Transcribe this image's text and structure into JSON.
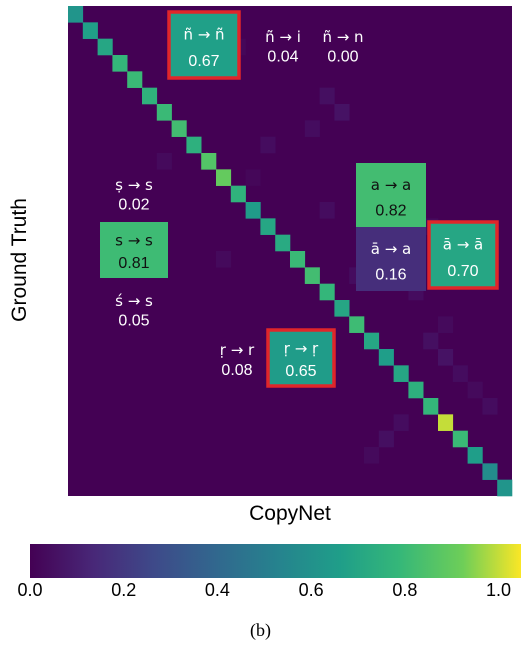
{
  "chart_data": {
    "type": "heatmap",
    "title": "",
    "xlabel": "CopyNet",
    "ylabel": "Ground Truth",
    "caption": "(b)",
    "size": 30,
    "colorscale": "viridis",
    "colorbar": {
      "range": [
        0.0,
        1.05
      ],
      "ticks": [
        "0.0",
        "0.2",
        "0.4",
        "0.6",
        "0.8",
        "1.0"
      ],
      "tick_values": [
        0.0,
        0.2,
        0.4,
        0.6,
        0.8,
        1.0
      ]
    },
    "diagonal": [
      0.62,
      0.67,
      0.7,
      0.78,
      0.8,
      0.76,
      0.8,
      0.82,
      0.75,
      0.86,
      0.9,
      0.76,
      0.65,
      0.7,
      0.72,
      0.8,
      0.82,
      0.78,
      0.7,
      0.81,
      0.7,
      0.66,
      0.7,
      0.75,
      0.78,
      1.0,
      0.8,
      0.66,
      0.58,
      0.62
    ],
    "off_diagonal": [
      {
        "row": 2,
        "col": 7,
        "value": 0.04
      },
      {
        "row": 2,
        "col": 11,
        "value": 0.02
      },
      {
        "row": 5,
        "col": 17,
        "value": 0.05
      },
      {
        "row": 6,
        "col": 18,
        "value": 0.06
      },
      {
        "row": 7,
        "col": 16,
        "value": 0.04
      },
      {
        "row": 8,
        "col": 13,
        "value": 0.04
      },
      {
        "row": 9,
        "col": 6,
        "value": 0.03
      },
      {
        "row": 10,
        "col": 12,
        "value": 0.02
      },
      {
        "row": 11,
        "col": 20,
        "value": 0.03
      },
      {
        "row": 12,
        "col": 17,
        "value": 0.04
      },
      {
        "row": 13,
        "col": 24,
        "value": 0.03
      },
      {
        "row": 14,
        "col": 22,
        "value": 0.04
      },
      {
        "row": 15,
        "col": 10,
        "value": 0.03
      },
      {
        "row": 16,
        "col": 19,
        "value": 0.04
      },
      {
        "row": 17,
        "col": 23,
        "value": 0.04
      },
      {
        "row": 19,
        "col": 25,
        "value": 0.03
      },
      {
        "row": 20,
        "col": 24,
        "value": 0.05
      },
      {
        "row": 21,
        "col": 25,
        "value": 0.06
      },
      {
        "row": 22,
        "col": 26,
        "value": 0.04
      },
      {
        "row": 23,
        "col": 27,
        "value": 0.03
      },
      {
        "row": 24,
        "col": 28,
        "value": 0.04
      },
      {
        "row": 25,
        "col": 22,
        "value": 0.04
      },
      {
        "row": 26,
        "col": 21,
        "value": 0.05
      },
      {
        "row": 27,
        "col": 20,
        "value": 0.03
      }
    ],
    "annotations": [
      {
        "id": "nn",
        "label": "ñ → ñ",
        "value": "0.67",
        "cell": 0.67,
        "highlight": true,
        "boxed": true
      },
      {
        "id": "ni",
        "label": "ñ → i",
        "value": "0.04",
        "cell": null,
        "highlight": false,
        "boxed": false
      },
      {
        "id": "nn2",
        "label": "ñ → n",
        "value": "0.00",
        "cell": null,
        "highlight": false,
        "boxed": false
      },
      {
        "id": "s_dot",
        "label": "ṣ → s",
        "value": "0.02",
        "cell": null,
        "highlight": false,
        "boxed": false
      },
      {
        "id": "ss",
        "label": "s → s",
        "value": "0.81",
        "cell": 0.81,
        "highlight": false,
        "boxed": true
      },
      {
        "id": "s_ac",
        "label": "ś → s",
        "value": "0.05",
        "cell": null,
        "highlight": false,
        "boxed": false
      },
      {
        "id": "aa",
        "label": "a → a",
        "value": "0.82",
        "cell": 0.82,
        "highlight": false,
        "boxed": true
      },
      {
        "id": "ma",
        "label": "ā → a",
        "value": "0.16",
        "cell": 0.16,
        "highlight": false,
        "boxed": true
      },
      {
        "id": "mm",
        "label": "ā → ā",
        "value": "0.70",
        "cell": 0.7,
        "highlight": true,
        "boxed": true
      },
      {
        "id": "rr",
        "label": "ṛ → r",
        "value": "0.08",
        "cell": null,
        "highlight": false,
        "boxed": false
      },
      {
        "id": "rrr",
        "label": "ṛ → ṛ",
        "value": "0.65",
        "cell": 0.65,
        "highlight": true,
        "boxed": true
      }
    ],
    "highlight_color": "#e0262a",
    "background_color": "#440154"
  }
}
